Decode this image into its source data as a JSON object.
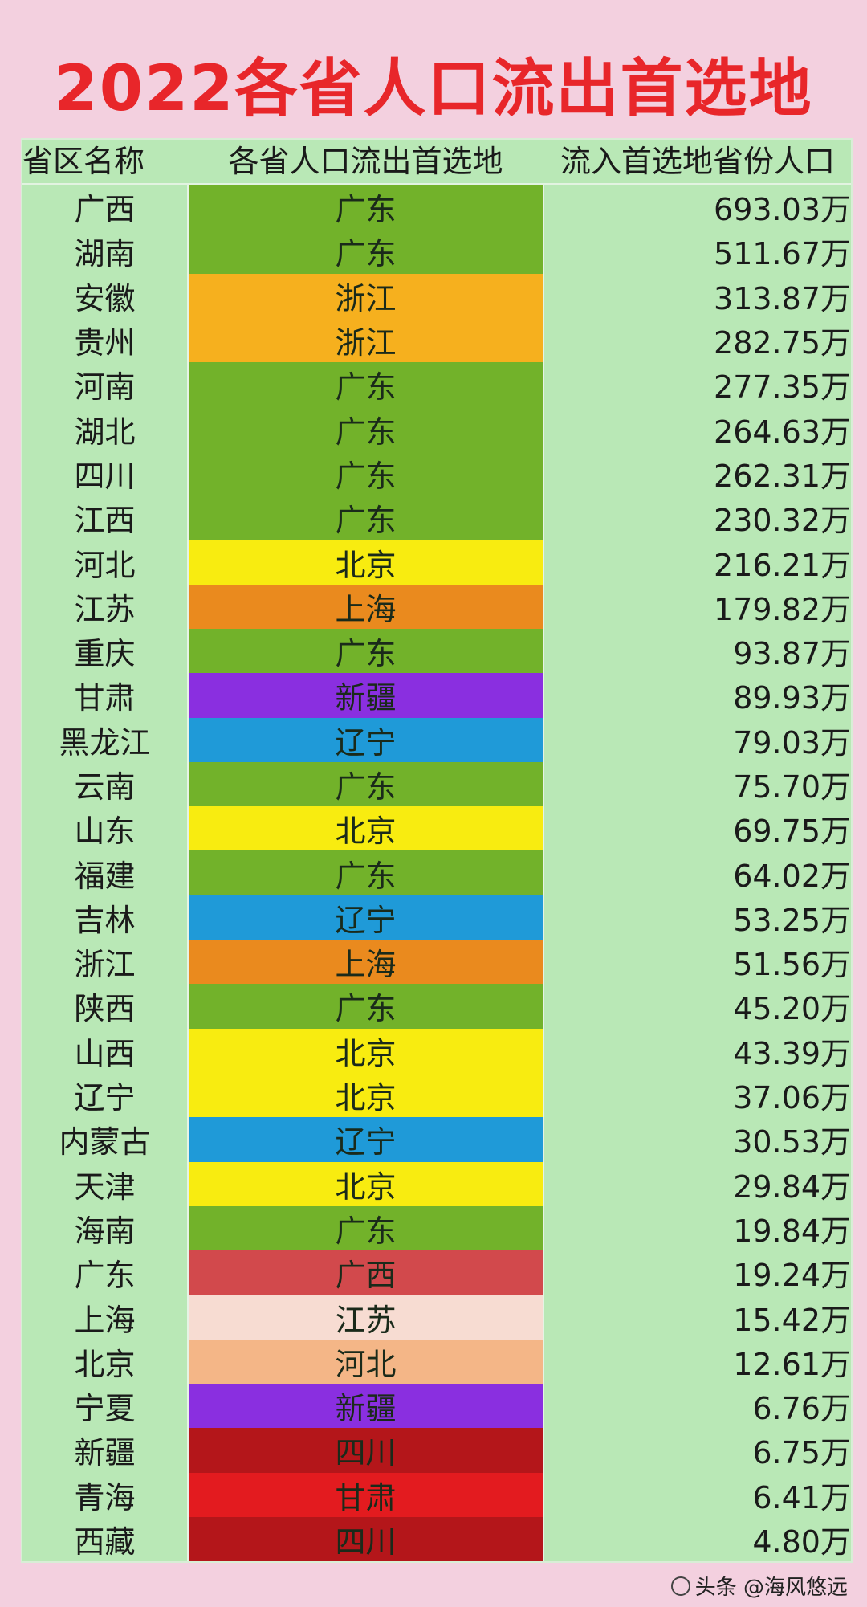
{
  "title": "2022各省人口流出首选地",
  "headers": [
    "省区名称",
    "各省人口流出首选地",
    "流入首选地省份人口"
  ],
  "colors": {
    "广东": "#72b22a",
    "浙江": "#f6b01e",
    "北京": "#f8ec10",
    "上海": "#ea8a1e",
    "新疆": "#8a2fe0",
    "辽宁": "#1f9ad8",
    "广西": "#d2494c",
    "江苏": "#f7dcd2",
    "河北": "#f4b687",
    "四川": "#b4161a",
    "甘肃": "#e31b1f"
  },
  "rows": [
    {
      "province": "广西",
      "destination": "广东",
      "population": "693.03万"
    },
    {
      "province": "湖南",
      "destination": "广东",
      "population": "511.67万"
    },
    {
      "province": "安徽",
      "destination": "浙江",
      "population": "313.87万"
    },
    {
      "province": "贵州",
      "destination": "浙江",
      "population": "282.75万"
    },
    {
      "province": "河南",
      "destination": "广东",
      "population": "277.35万"
    },
    {
      "province": "湖北",
      "destination": "广东",
      "population": "264.63万"
    },
    {
      "province": "四川",
      "destination": "广东",
      "population": "262.31万"
    },
    {
      "province": "江西",
      "destination": "广东",
      "population": "230.32万"
    },
    {
      "province": "河北",
      "destination": "北京",
      "population": "216.21万"
    },
    {
      "province": "江苏",
      "destination": "上海",
      "population": "179.82万"
    },
    {
      "province": "重庆",
      "destination": "广东",
      "population": "93.87万"
    },
    {
      "province": "甘肃",
      "destination": "新疆",
      "population": "89.93万"
    },
    {
      "province": "黑龙江",
      "destination": "辽宁",
      "population": "79.03万"
    },
    {
      "province": "云南",
      "destination": "广东",
      "population": "75.70万"
    },
    {
      "province": "山东",
      "destination": "北京",
      "population": "69.75万"
    },
    {
      "province": "福建",
      "destination": "广东",
      "population": "64.02万"
    },
    {
      "province": "吉林",
      "destination": "辽宁",
      "population": "53.25万"
    },
    {
      "province": "浙江",
      "destination": "上海",
      "population": "51.56万"
    },
    {
      "province": "陕西",
      "destination": "广东",
      "population": "45.20万"
    },
    {
      "province": "山西",
      "destination": "北京",
      "population": "43.39万"
    },
    {
      "province": "辽宁",
      "destination": "北京",
      "population": "37.06万"
    },
    {
      "province": "内蒙古",
      "destination": "辽宁",
      "population": "30.53万"
    },
    {
      "province": "天津",
      "destination": "北京",
      "population": "29.84万"
    },
    {
      "province": "海南",
      "destination": "广东",
      "population": "19.84万"
    },
    {
      "province": "广东",
      "destination": "广西",
      "population": "19.24万"
    },
    {
      "province": "上海",
      "destination": "江苏",
      "population": "15.42万"
    },
    {
      "province": "北京",
      "destination": "河北",
      "population": "12.61万"
    },
    {
      "province": "宁夏",
      "destination": "新疆",
      "population": "6.76万"
    },
    {
      "province": "新疆",
      "destination": "四川",
      "population": "6.75万"
    },
    {
      "province": "青海",
      "destination": "甘肃",
      "population": "6.41万"
    },
    {
      "province": "西藏",
      "destination": "四川",
      "population": "4.80万"
    }
  ],
  "watermark": "头条 @海风悠远"
}
